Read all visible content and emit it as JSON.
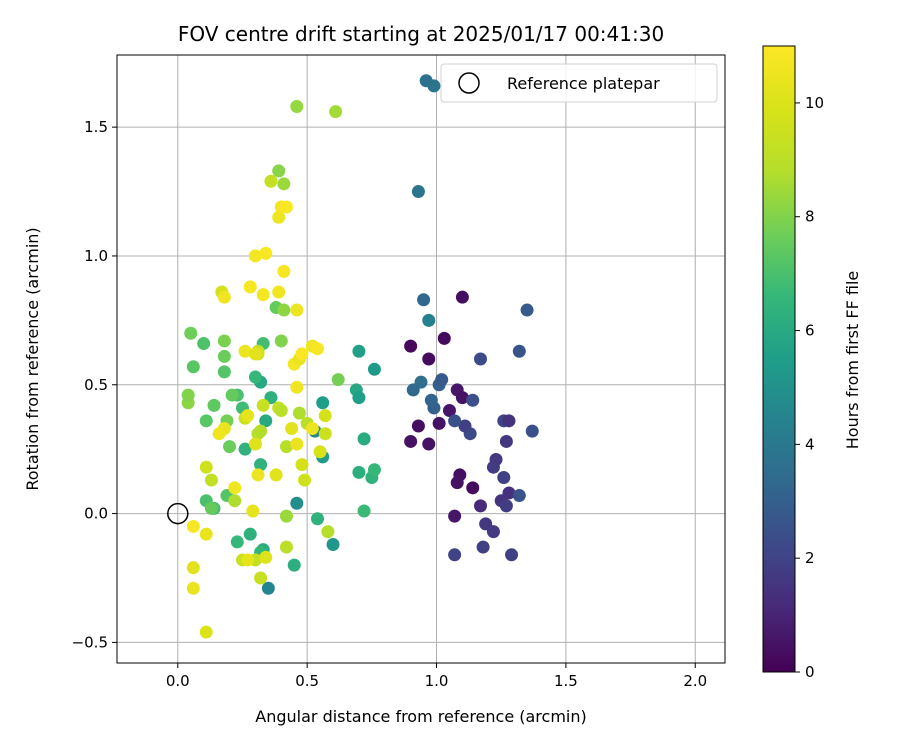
{
  "chart_data": {
    "type": "scatter",
    "title": "FOV centre drift starting at 2025/01/17 00:41:30",
    "xlabel": "Angular distance from reference (arcmin)",
    "ylabel": "Rotation from reference (arcmin)",
    "xlim": [
      -0.235,
      2.115
    ],
    "ylim": [
      -0.58,
      1.78
    ],
    "xticks": [
      0.0,
      0.5,
      1.0,
      1.5,
      2.0
    ],
    "xtick_labels": [
      "0.0",
      "0.5",
      "1.0",
      "1.5",
      "2.0"
    ],
    "yticks": [
      -0.5,
      0.0,
      0.5,
      1.0,
      1.5
    ],
    "ytick_labels": [
      "−0.5",
      "0.0",
      "0.5",
      "1.0",
      "1.5"
    ],
    "grid": true,
    "colormap": "viridis",
    "colorbar": {
      "label": "Hours from first FF file",
      "min": 0,
      "max": 11,
      "ticks": [
        0,
        2,
        4,
        6,
        8,
        10
      ],
      "tick_labels": [
        "0",
        "2",
        "4",
        "6",
        "8",
        "10"
      ]
    },
    "legend": {
      "position": "top-right",
      "entries": [
        "Reference platepar"
      ]
    },
    "reference_point": {
      "x": 0.0,
      "y": 0.0
    },
    "points": [
      {
        "x": 0.9,
        "y": 0.65,
        "h": 0.2
      },
      {
        "x": 0.97,
        "y": 0.6,
        "h": 0.3
      },
      {
        "x": 1.03,
        "y": 0.68,
        "h": 0.3
      },
      {
        "x": 1.1,
        "y": 0.84,
        "h": 0.4
      },
      {
        "x": 0.9,
        "y": 0.28,
        "h": 0.5
      },
      {
        "x": 0.93,
        "y": 0.34,
        "h": 0.4
      },
      {
        "x": 0.97,
        "y": 0.27,
        "h": 0.5
      },
      {
        "x": 1.08,
        "y": 0.48,
        "h": 0.6
      },
      {
        "x": 1.1,
        "y": 0.45,
        "h": 0.5
      },
      {
        "x": 1.05,
        "y": 0.4,
        "h": 0.6
      },
      {
        "x": 1.01,
        "y": 0.35,
        "h": 0.5
      },
      {
        "x": 1.09,
        "y": 0.15,
        "h": 0.4
      },
      {
        "x": 1.08,
        "y": 0.12,
        "h": 0.5
      },
      {
        "x": 1.14,
        "y": 0.1,
        "h": 0.3
      },
      {
        "x": 1.07,
        "y": -0.01,
        "h": 0.6
      },
      {
        "x": 1.17,
        "y": 0.03,
        "h": 1.2
      },
      {
        "x": 1.19,
        "y": -0.04,
        "h": 1.6
      },
      {
        "x": 1.22,
        "y": -0.07,
        "h": 1.7
      },
      {
        "x": 1.18,
        "y": -0.13,
        "h": 1.9
      },
      {
        "x": 1.07,
        "y": -0.16,
        "h": 2.0
      },
      {
        "x": 1.29,
        "y": -0.16,
        "h": 1.9
      },
      {
        "x": 1.25,
        "y": 0.05,
        "h": 1.5
      },
      {
        "x": 1.27,
        "y": 0.03,
        "h": 1.8
      },
      {
        "x": 1.28,
        "y": 0.08,
        "h": 1.4
      },
      {
        "x": 1.32,
        "y": 0.07,
        "h": 2.6
      },
      {
        "x": 1.26,
        "y": 0.14,
        "h": 1.9
      },
      {
        "x": 1.22,
        "y": 0.18,
        "h": 1.8
      },
      {
        "x": 1.23,
        "y": 0.21,
        "h": 1.7
      },
      {
        "x": 1.27,
        "y": 0.28,
        "h": 1.6
      },
      {
        "x": 1.26,
        "y": 0.36,
        "h": 2.0
      },
      {
        "x": 1.28,
        "y": 0.36,
        "h": 1.5
      },
      {
        "x": 1.37,
        "y": 0.32,
        "h": 2.5
      },
      {
        "x": 1.32,
        "y": 0.63,
        "h": 2.6
      },
      {
        "x": 1.17,
        "y": 0.6,
        "h": 2.3
      },
      {
        "x": 1.35,
        "y": 0.79,
        "h": 2.8
      },
      {
        "x": 1.14,
        "y": 0.44,
        "h": 2.4
      },
      {
        "x": 1.13,
        "y": 0.31,
        "h": 2.2
      },
      {
        "x": 1.11,
        "y": 0.34,
        "h": 1.9
      },
      {
        "x": 1.07,
        "y": 0.36,
        "h": 2.5
      },
      {
        "x": 1.01,
        "y": 0.5,
        "h": 3.0
      },
      {
        "x": 1.02,
        "y": 0.52,
        "h": 2.8
      },
      {
        "x": 0.99,
        "y": 0.41,
        "h": 3.0
      },
      {
        "x": 0.98,
        "y": 0.44,
        "h": 3.2
      },
      {
        "x": 0.91,
        "y": 0.48,
        "h": 3.3
      },
      {
        "x": 0.94,
        "y": 0.51,
        "h": 3.6
      },
      {
        "x": 0.95,
        "y": 0.83,
        "h": 3.3
      },
      {
        "x": 0.97,
        "y": 0.75,
        "h": 4.3
      },
      {
        "x": 0.93,
        "y": 1.25,
        "h": 3.9
      },
      {
        "x": 0.96,
        "y": 1.68,
        "h": 3.7
      },
      {
        "x": 0.99,
        "y": 1.66,
        "h": 3.8
      },
      {
        "x": 0.35,
        "y": -0.29,
        "h": 4.5
      },
      {
        "x": 0.46,
        "y": 0.04,
        "h": 4.9
      },
      {
        "x": 0.6,
        "y": -0.12,
        "h": 5.2
      },
      {
        "x": 0.53,
        "y": 0.32,
        "h": 4.6
      },
      {
        "x": 0.56,
        "y": 0.22,
        "h": 5.4
      },
      {
        "x": 0.56,
        "y": 0.43,
        "h": 5.5
      },
      {
        "x": 0.7,
        "y": 0.63,
        "h": 5.6
      },
      {
        "x": 0.69,
        "y": 0.48,
        "h": 5.9
      },
      {
        "x": 0.7,
        "y": 0.45,
        "h": 5.5
      },
      {
        "x": 0.76,
        "y": 0.56,
        "h": 5.4
      },
      {
        "x": 0.72,
        "y": 0.29,
        "h": 6.1
      },
      {
        "x": 0.7,
        "y": 0.16,
        "h": 6.2
      },
      {
        "x": 0.75,
        "y": 0.14,
        "h": 6.4
      },
      {
        "x": 0.76,
        "y": 0.17,
        "h": 6.6
      },
      {
        "x": 0.72,
        "y": 0.01,
        "h": 6.7
      },
      {
        "x": 0.54,
        "y": -0.02,
        "h": 6.3
      },
      {
        "x": 0.45,
        "y": -0.2,
        "h": 6.2
      },
      {
        "x": 0.33,
        "y": -0.14,
        "h": 6.1
      },
      {
        "x": 0.32,
        "y": -0.15,
        "h": 6.5
      },
      {
        "x": 0.28,
        "y": -0.08,
        "h": 6.3
      },
      {
        "x": 0.23,
        "y": -0.11,
        "h": 6.6
      },
      {
        "x": 0.32,
        "y": 0.19,
        "h": 6.4
      },
      {
        "x": 0.34,
        "y": 0.36,
        "h": 6.0
      },
      {
        "x": 0.36,
        "y": 0.45,
        "h": 6.3
      },
      {
        "x": 0.32,
        "y": 0.51,
        "h": 5.9
      },
      {
        "x": 0.3,
        "y": 0.53,
        "h": 6.6
      },
      {
        "x": 0.33,
        "y": 0.66,
        "h": 6.9
      },
      {
        "x": 0.25,
        "y": 0.41,
        "h": 6.8
      },
      {
        "x": 0.23,
        "y": 0.46,
        "h": 7.0
      },
      {
        "x": 0.26,
        "y": 0.25,
        "h": 6.4
      },
      {
        "x": 0.19,
        "y": 0.07,
        "h": 7.2
      },
      {
        "x": 0.14,
        "y": 0.02,
        "h": 6.9
      },
      {
        "x": 0.11,
        "y": 0.05,
        "h": 7.0
      },
      {
        "x": 0.13,
        "y": 0.02,
        "h": 7.5
      },
      {
        "x": 0.11,
        "y": 0.36,
        "h": 7.3
      },
      {
        "x": 0.14,
        "y": 0.42,
        "h": 7.4
      },
      {
        "x": 0.18,
        "y": 0.55,
        "h": 7.2
      },
      {
        "x": 0.18,
        "y": 0.61,
        "h": 7.6
      },
      {
        "x": 0.1,
        "y": 0.66,
        "h": 7.1
      },
      {
        "x": 0.06,
        "y": 0.57,
        "h": 7.3
      },
      {
        "x": 0.05,
        "y": 0.7,
        "h": 7.7
      },
      {
        "x": 0.04,
        "y": 0.43,
        "h": 8.2
      },
      {
        "x": 0.04,
        "y": 0.46,
        "h": 8.0
      },
      {
        "x": 0.2,
        "y": 0.26,
        "h": 7.6
      },
      {
        "x": 0.21,
        "y": 0.46,
        "h": 7.5
      },
      {
        "x": 0.19,
        "y": 0.36,
        "h": 7.8
      },
      {
        "x": 0.18,
        "y": 0.67,
        "h": 7.9
      },
      {
        "x": 0.38,
        "y": 0.8,
        "h": 7.5
      },
      {
        "x": 0.41,
        "y": 0.79,
        "h": 8.2
      },
      {
        "x": 0.4,
        "y": 0.67,
        "h": 8.0
      },
      {
        "x": 0.39,
        "y": 1.33,
        "h": 8.1
      },
      {
        "x": 0.41,
        "y": 1.28,
        "h": 8.4
      },
      {
        "x": 0.36,
        "y": 1.29,
        "h": 9.3
      },
      {
        "x": 0.46,
        "y": 1.58,
        "h": 8.3
      },
      {
        "x": 0.61,
        "y": 1.56,
        "h": 8.5
      },
      {
        "x": 0.62,
        "y": 0.52,
        "h": 7.8
      },
      {
        "x": 0.58,
        "y": -0.07,
        "h": 8.8
      },
      {
        "x": 0.42,
        "y": -0.01,
        "h": 8.4
      },
      {
        "x": 0.42,
        "y": -0.13,
        "h": 9.0
      },
      {
        "x": 0.3,
        "y": -0.18,
        "h": 9.3
      },
      {
        "x": 0.25,
        "y": -0.18,
        "h": 9.5
      },
      {
        "x": 0.32,
        "y": -0.25,
        "h": 9.4
      },
      {
        "x": 0.22,
        "y": 0.05,
        "h": 8.7
      },
      {
        "x": 0.13,
        "y": 0.13,
        "h": 9.2
      },
      {
        "x": 0.11,
        "y": 0.18,
        "h": 9.6
      },
      {
        "x": 0.31,
        "y": 0.31,
        "h": 8.9
      },
      {
        "x": 0.26,
        "y": 0.37,
        "h": 9.5
      },
      {
        "x": 0.32,
        "y": 0.32,
        "h": 8.8
      },
      {
        "x": 0.33,
        "y": 0.42,
        "h": 9.4
      },
      {
        "x": 0.31,
        "y": 0.63,
        "h": 9.1
      },
      {
        "x": 0.31,
        "y": 0.62,
        "h": 9.7
      },
      {
        "x": 0.39,
        "y": 0.41,
        "h": 9.3
      },
      {
        "x": 0.4,
        "y": 0.4,
        "h": 9.0
      },
      {
        "x": 0.42,
        "y": 0.26,
        "h": 8.9
      },
      {
        "x": 0.47,
        "y": 0.39,
        "h": 8.7
      },
      {
        "x": 0.5,
        "y": 0.35,
        "h": 9.0
      },
      {
        "x": 0.48,
        "y": 0.19,
        "h": 9.8
      },
      {
        "x": 0.49,
        "y": 0.13,
        "h": 9.6
      },
      {
        "x": 0.55,
        "y": 0.24,
        "h": 9.9
      },
      {
        "x": 0.57,
        "y": 0.31,
        "h": 9.5
      },
      {
        "x": 0.57,
        "y": 0.38,
        "h": 9.8
      },
      {
        "x": 0.44,
        "y": 0.33,
        "h": 10.2
      },
      {
        "x": 0.46,
        "y": 0.27,
        "h": 10.4
      },
      {
        "x": 0.52,
        "y": 0.33,
        "h": 10.5
      },
      {
        "x": 0.46,
        "y": 0.49,
        "h": 10.6
      },
      {
        "x": 0.45,
        "y": 0.58,
        "h": 10.7
      },
      {
        "x": 0.47,
        "y": 0.6,
        "h": 10.4
      },
      {
        "x": 0.48,
        "y": 0.62,
        "h": 10.9
      },
      {
        "x": 0.52,
        "y": 0.65,
        "h": 10.6
      },
      {
        "x": 0.54,
        "y": 0.64,
        "h": 10.8
      },
      {
        "x": 0.46,
        "y": 0.79,
        "h": 10.5
      },
      {
        "x": 0.39,
        "y": 0.86,
        "h": 10.6
      },
      {
        "x": 0.33,
        "y": 0.85,
        "h": 10.7
      },
      {
        "x": 0.28,
        "y": 0.88,
        "h": 10.8
      },
      {
        "x": 0.17,
        "y": 0.86,
        "h": 9.8
      },
      {
        "x": 0.18,
        "y": 0.84,
        "h": 10.6
      },
      {
        "x": 0.3,
        "y": 1.0,
        "h": 10.7
      },
      {
        "x": 0.34,
        "y": 1.01,
        "h": 10.9
      },
      {
        "x": 0.41,
        "y": 0.94,
        "h": 10.8
      },
      {
        "x": 0.39,
        "y": 1.15,
        "h": 10.5
      },
      {
        "x": 0.4,
        "y": 1.19,
        "h": 10.7
      },
      {
        "x": 0.42,
        "y": 1.19,
        "h": 10.9
      },
      {
        "x": 0.26,
        "y": 0.63,
        "h": 10.5
      },
      {
        "x": 0.3,
        "y": 0.62,
        "h": 10.2
      },
      {
        "x": 0.18,
        "y": 0.33,
        "h": 10.4
      },
      {
        "x": 0.16,
        "y": 0.31,
        "h": 10.6
      },
      {
        "x": 0.27,
        "y": 0.38,
        "h": 10.3
      },
      {
        "x": 0.3,
        "y": 0.27,
        "h": 10.1
      },
      {
        "x": 0.22,
        "y": 0.1,
        "h": 10.6
      },
      {
        "x": 0.31,
        "y": 0.15,
        "h": 10.5
      },
      {
        "x": 0.38,
        "y": 0.15,
        "h": 10.2
      },
      {
        "x": 0.29,
        "y": 0.01,
        "h": 10.3
      },
      {
        "x": 0.06,
        "y": -0.05,
        "h": 10.8
      },
      {
        "x": 0.11,
        "y": -0.08,
        "h": 10.4
      },
      {
        "x": 0.06,
        "y": -0.21,
        "h": 10.2
      },
      {
        "x": 0.06,
        "y": -0.29,
        "h": 10.4
      },
      {
        "x": 0.11,
        "y": -0.46,
        "h": 10.0
      },
      {
        "x": 0.27,
        "y": -0.18,
        "h": 10.3
      },
      {
        "x": 0.34,
        "y": -0.17,
        "h": 10.1
      }
    ]
  }
}
